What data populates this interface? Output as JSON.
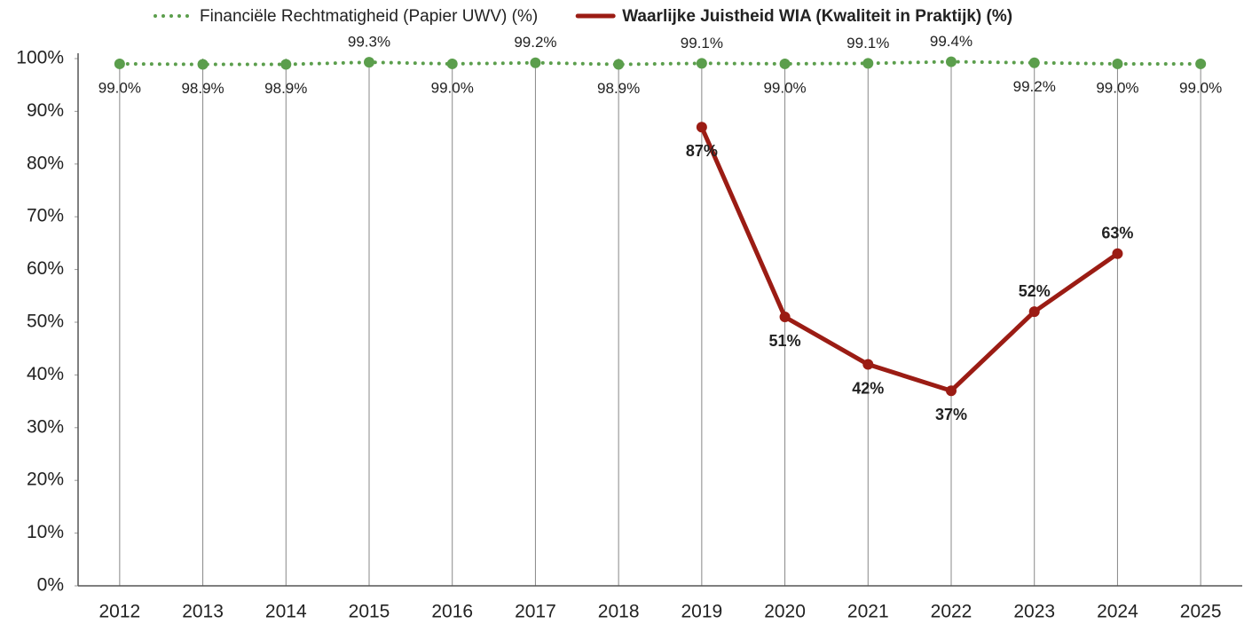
{
  "chart_data": {
    "type": "line",
    "categories": [
      "2012",
      "2013",
      "2014",
      "2015",
      "2016",
      "2017",
      "2018",
      "2019",
      "2020",
      "2021",
      "2022",
      "2023",
      "2024",
      "2025"
    ],
    "series": [
      {
        "name": "Financiële Rechtmatigheid (Papier UWV) (%)",
        "color": "#5b9e4c",
        "style": "dotted",
        "values": [
          99.0,
          98.9,
          98.9,
          99.3,
          99.0,
          99.2,
          98.9,
          99.1,
          99.0,
          99.1,
          99.4,
          99.2,
          99.0,
          99.0
        ],
        "value_labels": [
          "99.0%",
          "98.9%",
          "98.9%",
          "99.3%",
          "99.0%",
          "99.2%",
          "98.9%",
          "99.1%",
          "99.0%",
          "99.1%",
          "99.4%",
          "99.2%",
          "99.0%",
          "99.0%"
        ]
      },
      {
        "name": "Waarlijke Juistheid WIA (Kwaliteit in Praktijk) (%)",
        "color": "#9b1c14",
        "style": "solid",
        "values": [
          null,
          null,
          null,
          null,
          null,
          null,
          null,
          87,
          51,
          42,
          37,
          52,
          63,
          null
        ],
        "value_labels": [
          null,
          null,
          null,
          null,
          null,
          null,
          null,
          "87%",
          "51%",
          "42%",
          "37%",
          "52%",
          "63%",
          null
        ]
      }
    ],
    "ylim": [
      0,
      100
    ],
    "yticks": [
      {
        "value": 0,
        "label": "0%"
      },
      {
        "value": 10,
        "label": "10%"
      },
      {
        "value": 20,
        "label": "20%"
      },
      {
        "value": 30,
        "label": "30%"
      },
      {
        "value": 40,
        "label": "40%"
      },
      {
        "value": 50,
        "label": "50%"
      },
      {
        "value": 60,
        "label": "60%"
      },
      {
        "value": 70,
        "label": "70%"
      },
      {
        "value": 80,
        "label": "80%"
      },
      {
        "value": 90,
        "label": "90%"
      },
      {
        "value": 100,
        "label": "100%"
      }
    ],
    "grid": "x",
    "legend": "top"
  }
}
